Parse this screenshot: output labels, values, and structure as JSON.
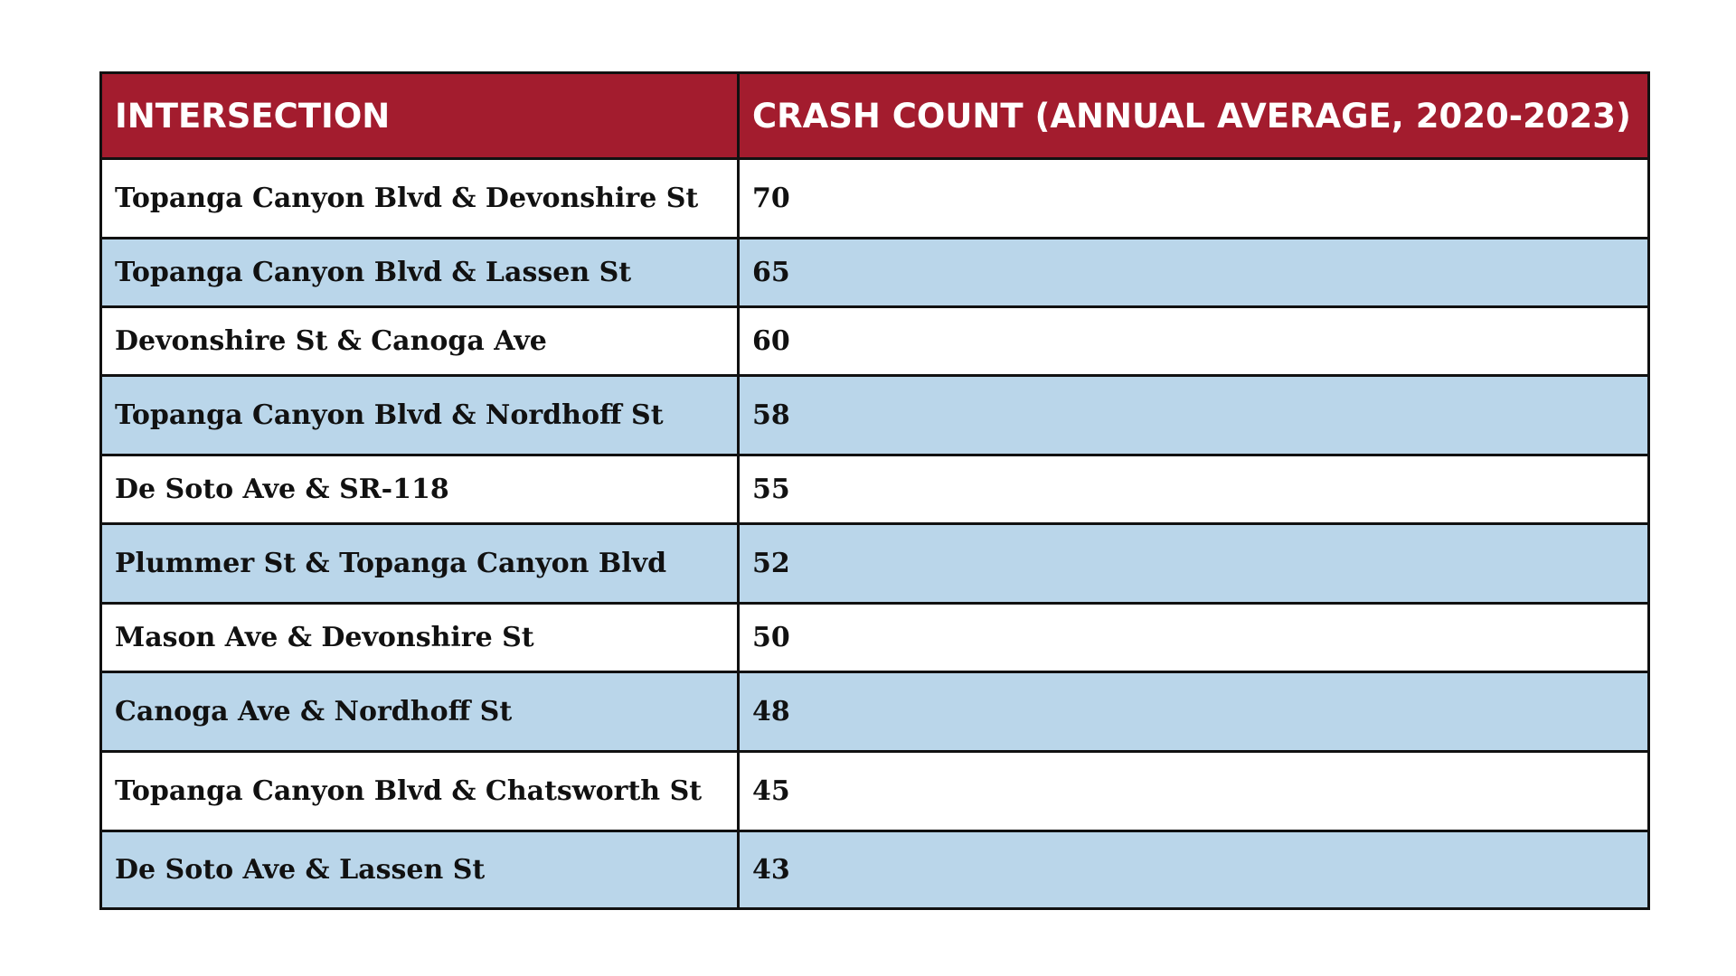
{
  "table": {
    "headers": [
      "INTERSECTION",
      "CRASH COUNT (ANNUAL AVERAGE, 2020-2023)"
    ],
    "rows": [
      {
        "intersection": "Topanga Canyon Blvd & Devonshire St",
        "crash_count": "70"
      },
      {
        "intersection": "Topanga Canyon Blvd & Lassen St",
        "crash_count": "65"
      },
      {
        "intersection": "Devonshire St & Canoga Ave",
        "crash_count": "60"
      },
      {
        "intersection": "Topanga Canyon Blvd & Nordhoff St",
        "crash_count": "58"
      },
      {
        "intersection": "De Soto Ave & SR-118",
        "crash_count": "55"
      },
      {
        "intersection": "Plummer St & Topanga Canyon Blvd",
        "crash_count": "52"
      },
      {
        "intersection": "Mason Ave & Devonshire St",
        "crash_count": "50"
      },
      {
        "intersection": "Canoga Ave & Nordhoff St",
        "crash_count": "48"
      },
      {
        "intersection": "Topanga Canyon Blvd & Chatsworth St",
        "crash_count": "45"
      },
      {
        "intersection": "De Soto Ave & Lassen St",
        "crash_count": "43"
      }
    ]
  },
  "colors": {
    "header_bg": "#a31c2e",
    "header_text": "#ffffff",
    "row_alt_bg": "#bad6ea",
    "row_bg": "#ffffff",
    "border": "#111111"
  }
}
